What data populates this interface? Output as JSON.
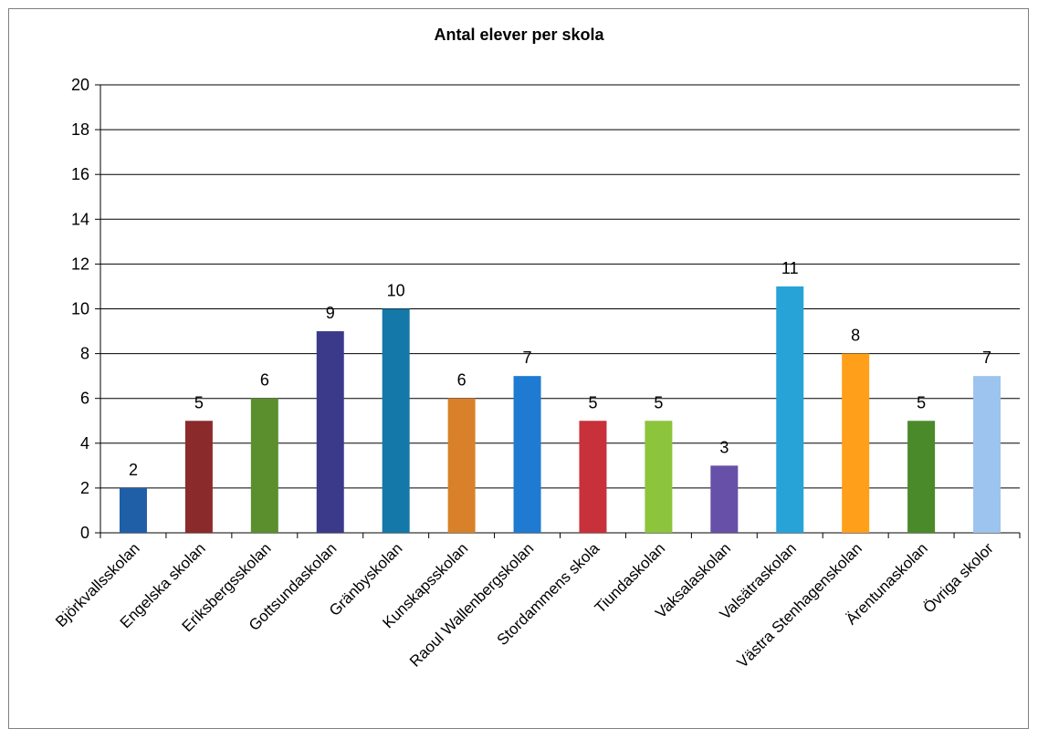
{
  "chart_data": {
    "type": "bar",
    "title": "Antal elever per skola",
    "xlabel": "",
    "ylabel": "",
    "ylim": [
      0,
      20
    ],
    "yticks": [
      0,
      2,
      4,
      6,
      8,
      10,
      12,
      14,
      16,
      18,
      20
    ],
    "grid": true,
    "legend": "none",
    "categories": [
      "Björkvallsskolan",
      "Engelska skolan",
      "Eriksbergsskolan",
      "Gottsundaskolan",
      "Gränbyskolan",
      "Kunskapsskolan",
      "Raoul Wallenbergskolan",
      "Stordammens skola",
      "Tiundaskolan",
      "Vaksalaskolan",
      "Valsätraskolan",
      "Västra Stenhagenskolan",
      "Ärentunaskolan",
      "Övriga skolor"
    ],
    "values": [
      2,
      5,
      6,
      9,
      10,
      6,
      7,
      5,
      5,
      3,
      11,
      8,
      5,
      7
    ],
    "colors": [
      "#1f5fa8",
      "#8b2a2a",
      "#5b8f2e",
      "#3b3a8a",
      "#1478a8",
      "#d9812a",
      "#1f7ad1",
      "#c8303a",
      "#8cc43c",
      "#6650a8",
      "#27a3d8",
      "#ff9f1a",
      "#4a8a2a",
      "#9cc4ee"
    ]
  }
}
